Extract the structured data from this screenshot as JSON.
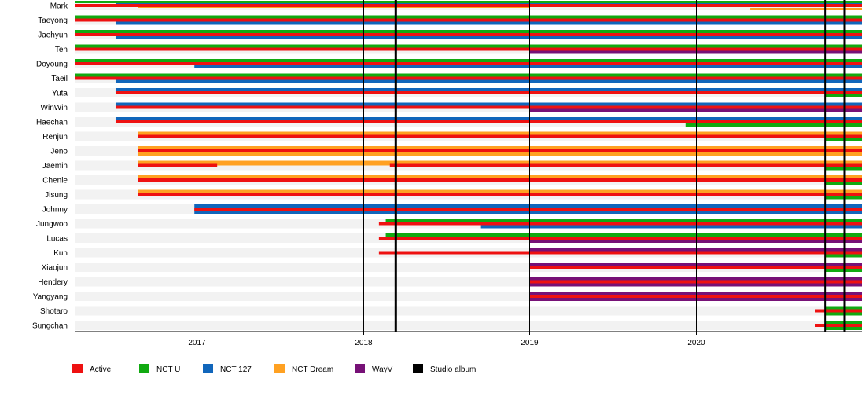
{
  "chart_data": {
    "type": "timeline",
    "title": "",
    "xlabel": "",
    "ylabel": "",
    "x_range": [
      "2016-04-10",
      "2020-12-31"
    ],
    "ticks": [
      "2017",
      "2018",
      "2019",
      "2020"
    ],
    "tick_dates": [
      "2017-01-01",
      "2018-01-01",
      "2019-01-01",
      "2020-01-01"
    ],
    "studio_albums": [
      "2018-03-14",
      "2020-10-12",
      "2020-11-23"
    ],
    "legend_position": "bottom",
    "legend": [
      {
        "key": "active",
        "label": "Active",
        "color": "#ee1111"
      },
      {
        "key": "nctu",
        "label": "NCT U",
        "color": "#11aa11"
      },
      {
        "key": "nct127",
        "label": "NCT 127",
        "color": "#1166bb"
      },
      {
        "key": "dream",
        "label": "NCT Dream",
        "color": "#ffa122"
      },
      {
        "key": "wayv",
        "label": "WayV",
        "color": "#771177"
      },
      {
        "key": "album",
        "label": "Studio album",
        "color": "#000000"
      }
    ],
    "members": [
      {
        "name": "Mark",
        "groups": [
          {
            "key": "nctu",
            "start": "2016-04-10",
            "end": "2020-12-31"
          },
          {
            "key": "nct127",
            "start": "2016-07-07",
            "end": "2020-12-31"
          },
          {
            "key": "dream",
            "start": "2016-08-25",
            "end": "2019-01-01"
          },
          {
            "key": "dream",
            "start": "2020-04-30",
            "end": "2020-12-31"
          }
        ],
        "active": [
          {
            "start": "2016-04-10",
            "end": "2020-12-31"
          }
        ]
      },
      {
        "name": "Taeyong",
        "groups": [
          {
            "key": "nctu",
            "start": "2016-04-10",
            "end": "2020-12-31"
          },
          {
            "key": "nct127",
            "start": "2016-07-07",
            "end": "2020-12-31"
          }
        ],
        "active": [
          {
            "start": "2016-04-10",
            "end": "2020-12-31"
          }
        ]
      },
      {
        "name": "Jaehyun",
        "groups": [
          {
            "key": "nctu",
            "start": "2016-04-10",
            "end": "2020-12-31"
          },
          {
            "key": "nct127",
            "start": "2016-07-07",
            "end": "2020-12-31"
          }
        ],
        "active": [
          {
            "start": "2016-04-10",
            "end": "2020-12-31"
          }
        ]
      },
      {
        "name": "Ten",
        "groups": [
          {
            "key": "nctu",
            "start": "2016-04-10",
            "end": "2020-12-31"
          },
          {
            "key": "wayv",
            "start": "2019-01-01",
            "end": "2020-12-31"
          }
        ],
        "active": [
          {
            "start": "2016-04-10",
            "end": "2020-12-31"
          }
        ]
      },
      {
        "name": "Doyoung",
        "groups": [
          {
            "key": "nctu",
            "start": "2016-04-10",
            "end": "2020-12-31"
          },
          {
            "key": "nct127",
            "start": "2016-12-27",
            "end": "2020-12-31"
          }
        ],
        "active": [
          {
            "start": "2016-04-10",
            "end": "2020-12-31"
          }
        ]
      },
      {
        "name": "Taeil",
        "groups": [
          {
            "key": "nctu",
            "start": "2016-04-10",
            "end": "2020-12-31"
          },
          {
            "key": "nct127",
            "start": "2016-07-07",
            "end": "2020-12-31"
          }
        ],
        "active": [
          {
            "start": "2016-04-10",
            "end": "2020-12-31"
          }
        ]
      },
      {
        "name": "Yuta",
        "groups": [
          {
            "key": "nct127",
            "start": "2016-07-07",
            "end": "2020-12-31"
          },
          {
            "key": "nctu",
            "start": "2020-10-12",
            "end": "2020-12-31"
          }
        ],
        "active": [
          {
            "start": "2016-07-07",
            "end": "2020-12-31"
          }
        ]
      },
      {
        "name": "WinWin",
        "groups": [
          {
            "key": "nct127",
            "start": "2016-07-07",
            "end": "2020-12-31"
          },
          {
            "key": "nctu",
            "start": "2018-03-14",
            "end": "2020-12-31"
          },
          {
            "key": "wayv",
            "start": "2019-01-01",
            "end": "2020-12-31"
          }
        ],
        "active": [
          {
            "start": "2016-07-07",
            "end": "2020-12-31"
          }
        ]
      },
      {
        "name": "Haechan",
        "groups": [
          {
            "key": "nct127",
            "start": "2016-07-07",
            "end": "2020-12-31"
          },
          {
            "key": "dream",
            "start": "2016-08-25",
            "end": "2020-12-31"
          },
          {
            "key": "nctu",
            "start": "2019-12-10",
            "end": "2020-12-31"
          }
        ],
        "active": [
          {
            "start": "2016-07-07",
            "end": "2020-12-31"
          }
        ]
      },
      {
        "name": "Renjun",
        "groups": [
          {
            "key": "dream",
            "start": "2016-08-25",
            "end": "2020-12-31"
          },
          {
            "key": "nctu",
            "start": "2020-10-12",
            "end": "2020-12-31"
          }
        ],
        "active": [
          {
            "start": "2016-08-25",
            "end": "2020-12-31"
          }
        ]
      },
      {
        "name": "Jeno",
        "groups": [
          {
            "key": "dream",
            "start": "2016-08-25",
            "end": "2020-12-31"
          }
        ],
        "active": [
          {
            "start": "2016-08-25",
            "end": "2020-12-31"
          }
        ]
      },
      {
        "name": "Jaemin",
        "groups": [
          {
            "key": "dream",
            "start": "2016-08-25",
            "end": "2020-12-31"
          },
          {
            "key": "nctu",
            "start": "2020-10-12",
            "end": "2020-12-31"
          }
        ],
        "active": [
          {
            "start": "2016-08-25",
            "end": "2017-02-15"
          },
          {
            "start": "2018-03-01",
            "end": "2020-12-31"
          }
        ]
      },
      {
        "name": "Chenle",
        "groups": [
          {
            "key": "dream",
            "start": "2016-08-25",
            "end": "2020-12-31"
          },
          {
            "key": "nctu",
            "start": "2020-10-12",
            "end": "2020-12-31"
          }
        ],
        "active": [
          {
            "start": "2016-08-25",
            "end": "2020-12-31"
          }
        ]
      },
      {
        "name": "Jisung",
        "groups": [
          {
            "key": "dream",
            "start": "2016-08-25",
            "end": "2020-12-31"
          },
          {
            "key": "nctu",
            "start": "2020-10-12",
            "end": "2020-12-31"
          }
        ],
        "active": [
          {
            "start": "2016-08-25",
            "end": "2020-12-31"
          }
        ]
      },
      {
        "name": "Johnny",
        "groups": [
          {
            "key": "nct127",
            "start": "2016-12-27",
            "end": "2020-12-31"
          }
        ],
        "active": [
          {
            "start": "2016-12-27",
            "end": "2020-12-31"
          }
        ]
      },
      {
        "name": "Jungwoo",
        "groups": [
          {
            "key": "nctu",
            "start": "2018-02-20",
            "end": "2020-12-31"
          },
          {
            "key": "nct127",
            "start": "2018-09-17",
            "end": "2020-12-31"
          }
        ],
        "active": [
          {
            "start": "2018-02-05",
            "end": "2020-12-31"
          }
        ]
      },
      {
        "name": "Lucas",
        "groups": [
          {
            "key": "nctu",
            "start": "2018-02-20",
            "end": "2020-12-31"
          },
          {
            "key": "wayv",
            "start": "2019-01-01",
            "end": "2020-12-31"
          }
        ],
        "active": [
          {
            "start": "2018-02-05",
            "end": "2020-12-31"
          }
        ]
      },
      {
        "name": "Kun",
        "groups": [
          {
            "key": "wayv",
            "start": "2019-01-01",
            "end": "2020-12-31"
          },
          {
            "key": "nctu",
            "start": "2020-10-12",
            "end": "2020-12-31"
          }
        ],
        "active": [
          {
            "start": "2018-02-05",
            "end": "2020-12-31"
          }
        ]
      },
      {
        "name": "Xiaojun",
        "groups": [
          {
            "key": "wayv",
            "start": "2019-01-01",
            "end": "2020-12-31"
          },
          {
            "key": "nctu",
            "start": "2020-10-12",
            "end": "2020-12-31"
          }
        ],
        "active": [
          {
            "start": "2019-01-01",
            "end": "2020-12-31"
          }
        ]
      },
      {
        "name": "Hendery",
        "groups": [
          {
            "key": "wayv",
            "start": "2019-01-01",
            "end": "2020-12-31"
          }
        ],
        "active": [
          {
            "start": "2019-01-01",
            "end": "2020-12-31"
          }
        ]
      },
      {
        "name": "Yangyang",
        "groups": [
          {
            "key": "wayv",
            "start": "2019-01-01",
            "end": "2020-12-31"
          }
        ],
        "active": [
          {
            "start": "2019-01-01",
            "end": "2020-12-31"
          }
        ]
      },
      {
        "name": "Shotaro",
        "groups": [
          {
            "key": "nctu",
            "start": "2020-10-12",
            "end": "2020-12-31"
          }
        ],
        "active": [
          {
            "start": "2020-09-20",
            "end": "2020-12-31"
          }
        ]
      },
      {
        "name": "Sungchan",
        "groups": [
          {
            "key": "nctu",
            "start": "2020-10-12",
            "end": "2020-12-31"
          }
        ],
        "active": [
          {
            "start": "2020-09-20",
            "end": "2020-12-31"
          }
        ]
      }
    ]
  }
}
